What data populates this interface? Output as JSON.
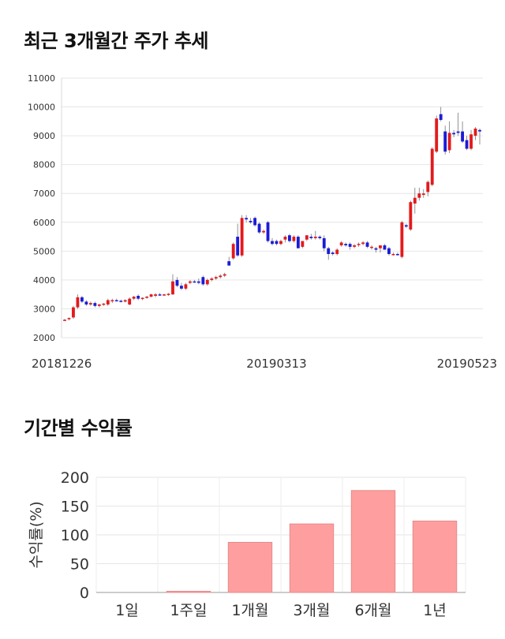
{
  "page": {
    "price_title": "최근 3개월간 주가 추세",
    "return_title": "기간별 수익률"
  },
  "colors": {
    "up": "#e31a1c",
    "down": "#1c1cd6",
    "bar": "#ff9e9e",
    "bar_stroke": "#e58a8a",
    "grid": "#e6e6e6"
  },
  "chart_data": [
    {
      "type": "candlestick",
      "title": "최근 3개월간 주가 추세",
      "ylim": [
        2000,
        11000
      ],
      "y_ticks": [
        2000,
        3000,
        4000,
        5000,
        6000,
        7000,
        8000,
        9000,
        10000,
        11000
      ],
      "x_tick_labels": [
        {
          "label": "20181226",
          "index": 0
        },
        {
          "label": "20190313",
          "index": 49
        },
        {
          "label": "20190523",
          "index": 96
        }
      ],
      "ohlc": [
        [
          2600,
          2650,
          2580,
          2620
        ],
        [
          2640,
          2700,
          2600,
          2680
        ],
        [
          2700,
          3100,
          2650,
          3050
        ],
        [
          3050,
          3500,
          3000,
          3400
        ],
        [
          3400,
          3450,
          3200,
          3250
        ],
        [
          3250,
          3300,
          3100,
          3150
        ],
        [
          3150,
          3250,
          3100,
          3200
        ],
        [
          3200,
          3250,
          3050,
          3100
        ],
        [
          3100,
          3180,
          3050,
          3150
        ],
        [
          3150,
          3200,
          3100,
          3180
        ],
        [
          3150,
          3350,
          3100,
          3300
        ],
        [
          3300,
          3350,
          3200,
          3300
        ],
        [
          3300,
          3350,
          3250,
          3280
        ],
        [
          3280,
          3320,
          3220,
          3270
        ],
        [
          3250,
          3330,
          3220,
          3300
        ],
        [
          3150,
          3400,
          3120,
          3350
        ],
        [
          3350,
          3450,
          3300,
          3420
        ],
        [
          3450,
          3500,
          3300,
          3350
        ],
        [
          3350,
          3400,
          3300,
          3380
        ],
        [
          3380,
          3450,
          3350,
          3420
        ],
        [
          3420,
          3520,
          3400,
          3500
        ],
        [
          3450,
          3550,
          3400,
          3500
        ],
        [
          3500,
          3550,
          3450,
          3480
        ],
        [
          3480,
          3520,
          3450,
          3500
        ],
        [
          3500,
          3550,
          3450,
          3520
        ],
        [
          3500,
          4200,
          3480,
          3950
        ],
        [
          4000,
          4100,
          3750,
          3800
        ],
        [
          3800,
          3900,
          3650,
          3700
        ],
        [
          3700,
          3900,
          3650,
          3850
        ],
        [
          3900,
          4000,
          3850,
          3950
        ],
        [
          3950,
          4000,
          3900,
          3920
        ],
        [
          3950,
          4050,
          3850,
          3900
        ],
        [
          4100,
          4150,
          3800,
          3850
        ],
        [
          3850,
          4050,
          3800,
          4000
        ],
        [
          4000,
          4100,
          3950,
          4050
        ],
        [
          4050,
          4150,
          4000,
          4100
        ],
        [
          4100,
          4200,
          4050,
          4150
        ],
        [
          4150,
          4250,
          4100,
          4200
        ],
        [
          4650,
          4800,
          4500,
          4500
        ],
        [
          4750,
          5300,
          4700,
          5250
        ],
        [
          5500,
          5950,
          4800,
          4850
        ],
        [
          4850,
          6250,
          4800,
          6150
        ],
        [
          6150,
          6250,
          6000,
          6100
        ],
        [
          6050,
          6150,
          5950,
          6000
        ],
        [
          6150,
          6200,
          5850,
          5900
        ],
        [
          5950,
          6000,
          5600,
          5650
        ],
        [
          5650,
          5750,
          5600,
          5700
        ],
        [
          6000,
          6050,
          5300,
          5350
        ],
        [
          5350,
          5450,
          5200,
          5250
        ],
        [
          5350,
          5400,
          5200,
          5250
        ],
        [
          5250,
          5400,
          5200,
          5350
        ],
        [
          5400,
          5550,
          5300,
          5500
        ],
        [
          5550,
          5600,
          5300,
          5350
        ],
        [
          5350,
          5550,
          5300,
          5500
        ],
        [
          5500,
          5550,
          5100,
          5100
        ],
        [
          5150,
          5350,
          5100,
          5350
        ],
        [
          5400,
          5550,
          5350,
          5550
        ],
        [
          5500,
          5600,
          5400,
          5450
        ],
        [
          5450,
          5700,
          5400,
          5500
        ],
        [
          5500,
          5550,
          5400,
          5450
        ],
        [
          5450,
          5550,
          5000,
          5100
        ],
        [
          5100,
          5150,
          4700,
          4900
        ],
        [
          4950,
          5000,
          4850,
          4900
        ],
        [
          4900,
          5100,
          4850,
          5050
        ],
        [
          5200,
          5350,
          5150,
          5300
        ],
        [
          5250,
          5300,
          5150,
          5200
        ],
        [
          5250,
          5300,
          5050,
          5150
        ],
        [
          5150,
          5250,
          5100,
          5200
        ],
        [
          5250,
          5300,
          5150,
          5250
        ],
        [
          5250,
          5350,
          5200,
          5300
        ],
        [
          5300,
          5350,
          5100,
          5150
        ],
        [
          5150,
          5200,
          5050,
          5150
        ],
        [
          5100,
          5150,
          4950,
          5050
        ],
        [
          5100,
          5200,
          4950,
          5200
        ],
        [
          5200,
          5250,
          5050,
          5050
        ],
        [
          5100,
          5150,
          4850,
          4900
        ],
        [
          4900,
          4950,
          4850,
          4900
        ],
        [
          4900,
          4950,
          4850,
          4880
        ],
        [
          4800,
          6050,
          4750,
          6000
        ],
        [
          5900,
          5950,
          5800,
          5850
        ],
        [
          5750,
          6750,
          5700,
          6700
        ],
        [
          6650,
          7200,
          6300,
          6850
        ],
        [
          6850,
          7200,
          6750,
          7000
        ],
        [
          6950,
          7150,
          6850,
          7000
        ],
        [
          7050,
          7450,
          6900,
          7400
        ],
        [
          7300,
          8600,
          7250,
          8550
        ],
        [
          8450,
          9700,
          8400,
          9600
        ],
        [
          9750,
          10000,
          9500,
          9550
        ],
        [
          9150,
          9350,
          8350,
          8450
        ],
        [
          8500,
          9500,
          8400,
          9100
        ],
        [
          9100,
          9200,
          8950,
          9050
        ],
        [
          9150,
          9800,
          9000,
          9100
        ],
        [
          9150,
          9500,
          8750,
          8800
        ],
        [
          8850,
          9000,
          8500,
          8550
        ],
        [
          8550,
          9200,
          8500,
          9050
        ],
        [
          9000,
          9300,
          8850,
          9250
        ],
        [
          9200,
          9250,
          8700,
          9150
        ]
      ]
    },
    {
      "type": "bar",
      "title": "기간별 수익률",
      "ylabel": "수익률(%)",
      "ylim": [
        0,
        200
      ],
      "y_ticks": [
        0,
        50,
        100,
        150,
        200
      ],
      "categories": [
        "1일",
        "1주일",
        "1개월",
        "3개월",
        "6개월",
        "1년"
      ],
      "values": [
        0,
        2,
        87,
        119,
        177,
        124
      ]
    }
  ]
}
